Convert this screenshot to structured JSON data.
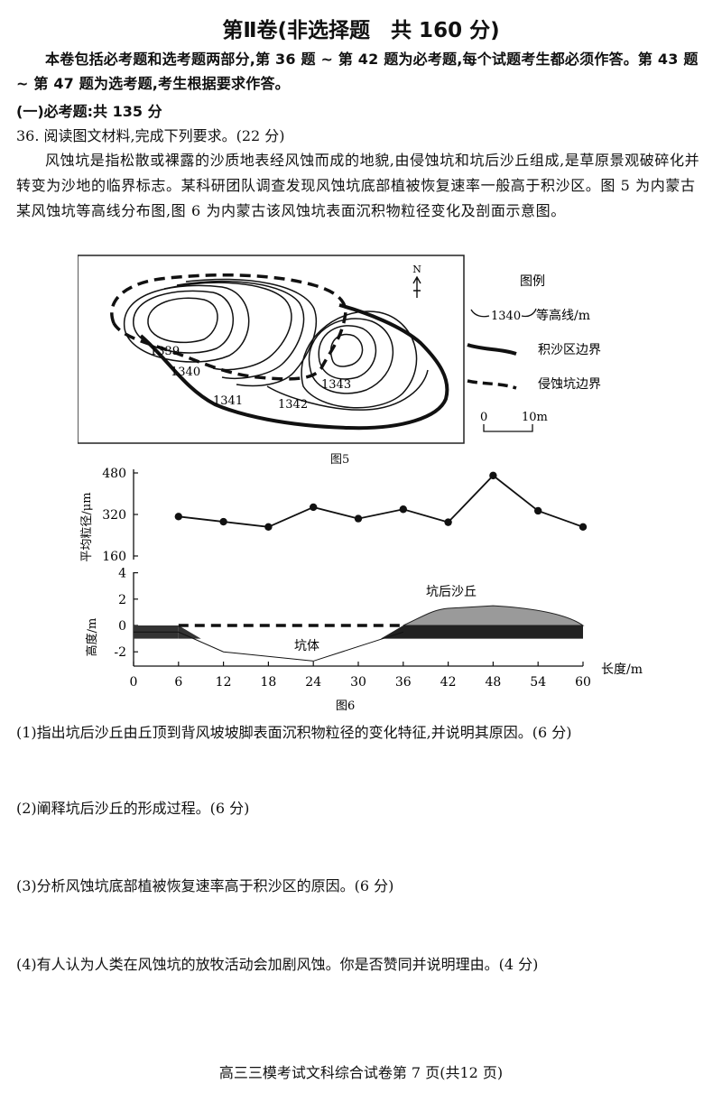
{
  "header": {
    "title": "第Ⅱ卷(非选择题　共 160 分)",
    "intro": "本卷包括必考题和选考题两部分,第 36 题 ~ 第 42 题为必考题,每个试题考生都必须作答。第 43 题 ~ 第 47 题为选考题,考生根据要求作答。",
    "section": "(一)必考题:共 135 分"
  },
  "question36": {
    "head": "36. 阅读图文材料,完成下列要求。(22 分)",
    "material": "风蚀坑是指松散或裸露的沙质地表经风蚀而成的地貌,由侵蚀坑和坑后沙丘组成,是草原景观破碎化并转变为沙地的临界标志。某科研团队调查发现风蚀坑底部植被恢复速率一般高于积沙区。图 5 为内蒙古某风蚀坑等高线分布图,图 6 为内蒙古该风蚀坑表面沉积物粒径变化及剖面示意图。"
  },
  "figure5": {
    "caption": "图5",
    "north": "N",
    "contours": [
      "1339",
      "1340",
      "1341",
      "1342",
      "1343"
    ],
    "legend_title": "图例",
    "legend_contour_value": "1340",
    "legend_contour_label": "等高线/m",
    "legend_sand": "积沙区边界",
    "legend_pit": "侵蚀坑边界",
    "scale_zero": "0",
    "scale_label": "10m"
  },
  "figure6": {
    "caption": "图6",
    "ylabel_top": "平均粒径/μm",
    "ylabel_bottom": "高度/m",
    "xlabel": "长度/m",
    "label_pit": "坑体",
    "label_dune": "坑后沙丘"
  },
  "chart_data": [
    {
      "type": "line",
      "ylabel": "平均粒径/μm",
      "xlabel": "长度/m",
      "x": [
        6,
        12,
        18,
        24,
        30,
        36,
        42,
        48,
        54,
        60
      ],
      "y": [
        312,
        292,
        272,
        348,
        304,
        340,
        290,
        470,
        334,
        272
      ],
      "yticks": [
        160,
        320,
        480
      ],
      "ylim": [
        160,
        480
      ]
    },
    {
      "type": "area",
      "ylabel": "高度/m",
      "xlabel": "长度/m",
      "xticks": [
        0,
        6,
        12,
        18,
        24,
        30,
        36,
        42,
        48,
        54,
        60
      ],
      "yticks": [
        -2,
        0,
        2,
        4
      ],
      "ylim": [
        -3,
        4
      ],
      "xlim": [
        0,
        60
      ],
      "profile": {
        "x": [
          0,
          6,
          12,
          24,
          36,
          42,
          48,
          54,
          60
        ],
        "y": [
          -0.5,
          -0.5,
          -2.0,
          -2.7,
          -0.5,
          1.3,
          1.5,
          1.1,
          0.0
        ]
      }
    }
  ],
  "questions": [
    "(1)指出坑后沙丘由丘顶到背风坡坡脚表面沉积物粒径的变化特征,并说明其原因。(6 分)",
    "(2)阐释坑后沙丘的形成过程。(6 分)",
    "(3)分析风蚀坑底部植被恢复速率高于积沙区的原因。(6 分)",
    "(4)有人认为人类在风蚀坑的放牧活动会加剧风蚀。你是否赞同并说明理由。(4 分)"
  ],
  "footer": "高三三模考试文科综合试卷第 7 页(共12 页)"
}
